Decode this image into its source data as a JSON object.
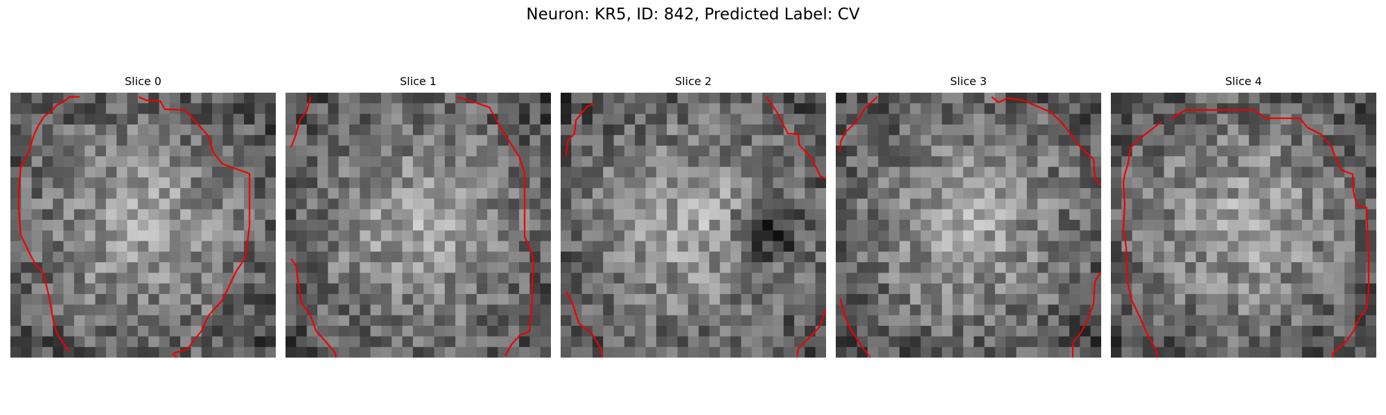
{
  "figure": {
    "title": "Neuron: KR5, ID: 842, Predicted Label: CV",
    "colormap": "gray",
    "contour_color": "#ee0000",
    "panels": [
      {
        "title": "Slice 0",
        "seed": 11,
        "dark_blob": false
      },
      {
        "title": "Slice 1",
        "seed": 23,
        "dark_blob": false
      },
      {
        "title": "Slice 2",
        "seed": 37,
        "dark_blob": true
      },
      {
        "title": "Slice 3",
        "seed": 41,
        "dark_blob": false
      },
      {
        "title": "Slice 4",
        "seed": 59,
        "dark_blob": false
      }
    ]
  }
}
